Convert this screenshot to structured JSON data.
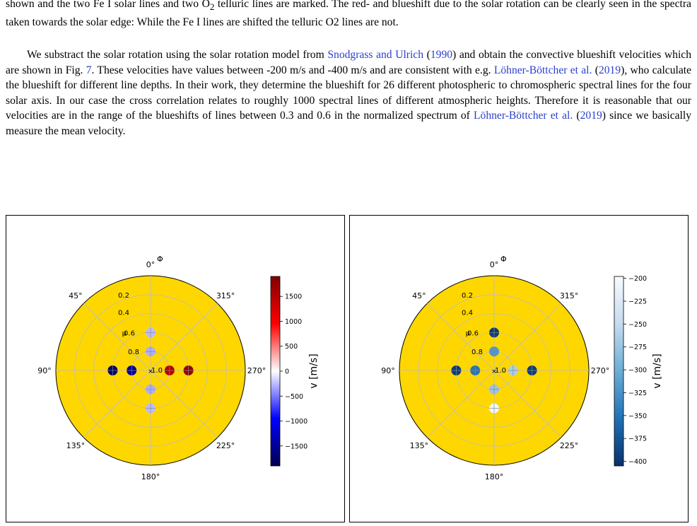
{
  "text": {
    "p1_line1": "shown and the two Fe I solar lines and two O",
    "p1_sub": "2",
    "p1_line1b": " telluric lines are marked. The red- and blueshift due to the solar rotation can be clearly seen in the spectra taken towards the solar edge: While the Fe I lines are shifted the telluric O2 lines are not.",
    "p2_a": "We substract the solar rotation using the solar rotation model from ",
    "p2_cite1": "Snodgrass and Ulrich",
    "p2_cite1_year": "1990",
    "p2_b": " and obtain the convective blueshift velocities which are shown in Fig. ",
    "p2_fig": "7",
    "p2_c": ". These velocities have values between -200 m/s and -400 m/s and are consistent with e.g. ",
    "p2_cite2": "Löhner-Böttcher et al.",
    "p2_cite2_year": "2019",
    "p2_d": ", who calculate the blueshift for different line depths. In their work, they determine the blueshift for 26 different photospheric to chromospheric spectral lines for the four solar axis. In our case the cross correlation relates to roughly 1000 spectral lines of different atmospheric heights. Therefore it is reasonable that our velocities are in the range of the blueshifts of lines between 0.3 and 0.6 in the normalized spectrum of ",
    "p2_cite3": "Löhner-Böttcher et al.",
    "p2_cite3_year": "2019",
    "p2_e": " since we basically measure the mean velocity."
  },
  "chart_data": [
    {
      "type": "scatter",
      "projection": "polar",
      "disk_color": "#ffd700",
      "theta_label": "Φ",
      "r_label": "μ",
      "theta_ticks": [
        "0°",
        "45°",
        "90°",
        "135°",
        "180°",
        "225°",
        "270°",
        "315°"
      ],
      "r_ticks": [
        "0.2",
        "0.4",
        "0.6",
        "0.8",
        "1.0"
      ],
      "colorbar": {
        "label": "v [m/s]",
        "colormap": "seismic",
        "min": -1900,
        "max": 1900,
        "ticks": [
          "1500",
          "1000",
          "500",
          "0",
          "−500",
          "−1000",
          "−1500"
        ],
        "tick_values": [
          1500,
          1000,
          500,
          0,
          -500,
          -1000,
          -1500
        ]
      },
      "points": [
        {
          "theta": 0,
          "mu": 0.6,
          "v": -250
        },
        {
          "theta": 0,
          "mu": 0.8,
          "v": -300
        },
        {
          "theta": 90,
          "mu": 0.6,
          "v": -1750
        },
        {
          "theta": 90,
          "mu": 0.8,
          "v": -1500
        },
        {
          "theta": 180,
          "mu": 0.8,
          "v": -300
        },
        {
          "theta": 180,
          "mu": 0.6,
          "v": -250
        },
        {
          "theta": 270,
          "mu": 0.8,
          "v": 1500
        },
        {
          "theta": 270,
          "mu": 0.6,
          "v": 1750
        }
      ]
    },
    {
      "type": "scatter",
      "projection": "polar",
      "disk_color": "#ffd700",
      "theta_label": "Φ",
      "r_label": "μ",
      "theta_ticks": [
        "0°",
        "45°",
        "90°",
        "135°",
        "180°",
        "225°",
        "270°",
        "315°"
      ],
      "r_ticks": [
        "0.2",
        "0.4",
        "0.6",
        "0.8",
        "1.0"
      ],
      "colorbar": {
        "label": "v [m/s]",
        "colormap": "Blues_r",
        "min": -405,
        "max": -198,
        "ticks": [
          "−200",
          "−225",
          "−250",
          "−275",
          "−300",
          "−325",
          "−350",
          "−375",
          "−400"
        ],
        "tick_values": [
          -200,
          -225,
          -250,
          -275,
          -300,
          -325,
          -350,
          -375,
          -400
        ]
      },
      "points": [
        {
          "theta": 0,
          "mu": 0.6,
          "v": -395
        },
        {
          "theta": 0,
          "mu": 0.8,
          "v": -320
        },
        {
          "theta": 90,
          "mu": 0.6,
          "v": -395
        },
        {
          "theta": 90,
          "mu": 0.8,
          "v": -350
        },
        {
          "theta": 180,
          "mu": 0.8,
          "v": -275
        },
        {
          "theta": 180,
          "mu": 0.6,
          "v": -205
        },
        {
          "theta": 270,
          "mu": 0.8,
          "v": -265
        },
        {
          "theta": 270,
          "mu": 0.6,
          "v": -395
        }
      ]
    }
  ]
}
